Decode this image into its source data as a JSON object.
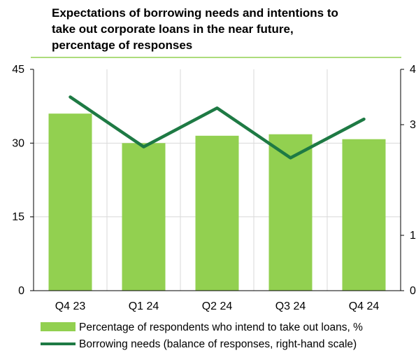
{
  "chart_data": {
    "type": "bar",
    "title_lines": [
      "Expectations of borrowing needs and intentions to",
      "take out corporate loans in the near future,",
      "percentage of responses"
    ],
    "categories": [
      "Q4 23",
      "Q1 24",
      "Q2 24",
      "Q3 24",
      "Q4 24"
    ],
    "y_left": {
      "ticks": [
        "0",
        "15",
        "30",
        "45"
      ],
      "ylim": [
        0,
        45
      ]
    },
    "y_right": {
      "ticks": [
        "0",
        "1",
        "3",
        "4"
      ],
      "ylim": [
        0,
        4
      ]
    },
    "series": [
      {
        "name": "Percentage of respondents who intend to take out loans, %",
        "kind": "bar",
        "axis": "left",
        "color": "#92d050",
        "values": [
          36.0,
          30.0,
          31.5,
          31.8,
          30.8
        ]
      },
      {
        "name": "Borrowing needs (balance of responses, right-hand scale)",
        "kind": "line",
        "axis": "right",
        "color": "#1e7a44",
        "values": [
          3.5,
          2.6,
          3.3,
          2.4,
          3.1
        ]
      }
    ],
    "grid": true,
    "legend_position": "bottom"
  }
}
